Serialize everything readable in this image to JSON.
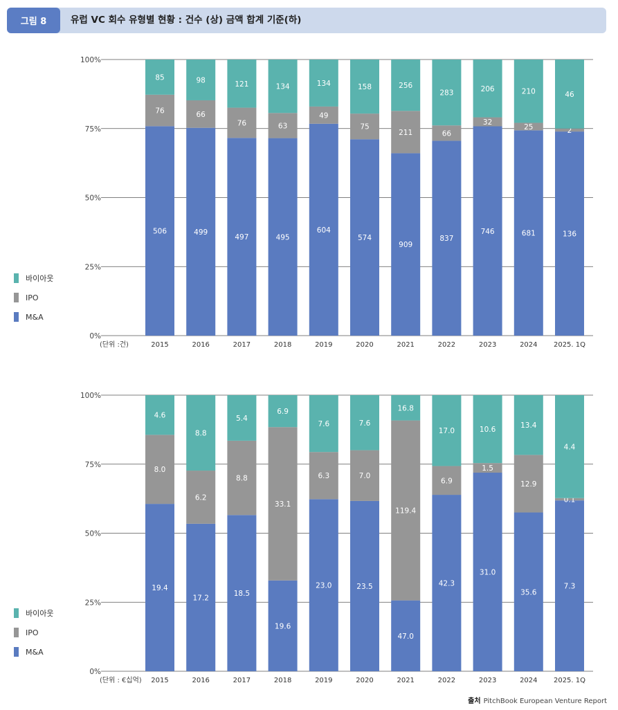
{
  "header": {
    "figure_label": "그림 8",
    "title": "유럽 VC 회수 유형별 현황 : 건수 (상) 금액 합계 기준(하)"
  },
  "legend": {
    "items": [
      {
        "label": "바이아웃",
        "color": "#5ab3ae"
      },
      {
        "label": "IPO",
        "color": "#969696"
      },
      {
        "label": "M&A",
        "color": "#5a7bc0"
      }
    ]
  },
  "source": {
    "label": "출처",
    "text": "PitchBook European Venture Report"
  },
  "chart_data": [
    {
      "type": "bar",
      "stacked": "percent",
      "unit_label": "(단위 :건)",
      "categories": [
        "2015",
        "2016",
        "2017",
        "2018",
        "2019",
        "2020",
        "2021",
        "2022",
        "2023",
        "2024",
        "2025. 1Q"
      ],
      "yticks": [
        "0%",
        "25%",
        "50%",
        "75%",
        "100%"
      ],
      "ylim": [
        0,
        100
      ],
      "series": [
        {
          "name": "M&A",
          "color": "#5a7bc0",
          "values": [
            506,
            499,
            497,
            495,
            604,
            574,
            909,
            837,
            746,
            681,
            136
          ]
        },
        {
          "name": "IPO",
          "color": "#969696",
          "values": [
            76,
            66,
            76,
            63,
            49,
            75,
            211,
            66,
            32,
            25,
            2
          ]
        },
        {
          "name": "바이아웃",
          "color": "#5ab3ae",
          "values": [
            85,
            98,
            121,
            134,
            134,
            158,
            256,
            283,
            206,
            210,
            46
          ]
        }
      ],
      "labels": {
        "M&A": [
          "506",
          "499",
          "497",
          "495",
          "604",
          "574",
          "909",
          "837",
          "746",
          "681",
          "136"
        ],
        "IPO": [
          "76",
          "66",
          "76",
          "63",
          "49",
          "75",
          "211",
          "66",
          "32",
          "25",
          "2"
        ],
        "바이아웃": [
          "85",
          "98",
          "121",
          "134",
          "134",
          "158",
          "256",
          "283",
          "206",
          "210",
          "46"
        ]
      }
    },
    {
      "type": "bar",
      "stacked": "percent",
      "unit_label": "(단위 : €십억)",
      "categories": [
        "2015",
        "2016",
        "2017",
        "2018",
        "2019",
        "2020",
        "2021",
        "2022",
        "2023",
        "2024",
        "2025. 1Q"
      ],
      "yticks": [
        "0%",
        "25%",
        "50%",
        "75%",
        "100%"
      ],
      "ylim": [
        0,
        100
      ],
      "series": [
        {
          "name": "M&A",
          "color": "#5a7bc0",
          "values": [
            19.4,
            17.2,
            18.5,
            19.6,
            23.0,
            23.5,
            47.0,
            42.3,
            31.0,
            35.6,
            7.3
          ]
        },
        {
          "name": "IPO",
          "color": "#969696",
          "values": [
            8.0,
            6.2,
            8.8,
            33.1,
            6.3,
            7.0,
            119.4,
            6.9,
            1.5,
            12.9,
            0.1
          ]
        },
        {
          "name": "바이아웃",
          "color": "#5ab3ae",
          "values": [
            4.6,
            8.8,
            5.4,
            6.9,
            7.6,
            7.6,
            16.8,
            17.0,
            10.6,
            13.4,
            4.4
          ]
        }
      ],
      "labels": {
        "M&A": [
          "19.4",
          "17.2",
          "18.5",
          "19.6",
          "23.0",
          "23.5",
          "47.0",
          "42.3",
          "31.0",
          "35.6",
          "7.3"
        ],
        "IPO": [
          "8.0",
          "6.2",
          "8.8",
          "33.1",
          "6.3",
          "7.0",
          "119.4",
          "6.9",
          "1.5",
          "12.9",
          "0.1"
        ],
        "바이아웃": [
          "4.6",
          "8.8",
          "5.4",
          "6.9",
          "7.6",
          "7.6",
          "16.8",
          "17.0",
          "10.6",
          "13.4",
          "4.4"
        ]
      }
    }
  ]
}
